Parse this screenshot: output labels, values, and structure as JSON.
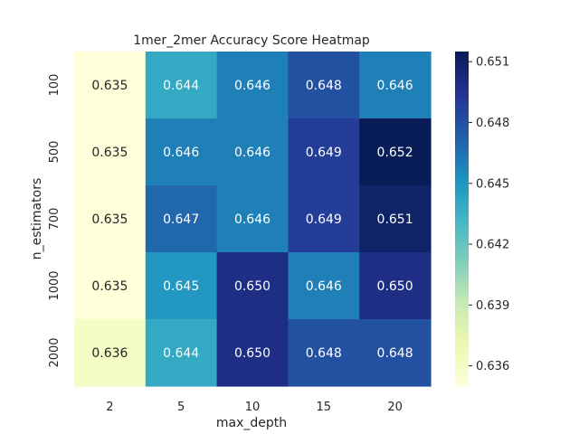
{
  "chart_data": {
    "type": "heatmap",
    "title": "1mer_2mer Accuracy Score Heatmap",
    "xlabel": "max_depth",
    "ylabel": "n_estimators",
    "x_categories": [
      "2",
      "5",
      "10",
      "15",
      "20"
    ],
    "y_categories": [
      "100",
      "500",
      "700",
      "1000",
      "2000"
    ],
    "values": [
      [
        0.635,
        0.644,
        0.646,
        0.648,
        0.646
      ],
      [
        0.635,
        0.646,
        0.646,
        0.649,
        0.652
      ],
      [
        0.635,
        0.647,
        0.646,
        0.649,
        0.651
      ],
      [
        0.635,
        0.645,
        0.65,
        0.646,
        0.65
      ],
      [
        0.636,
        0.644,
        0.65,
        0.648,
        0.648
      ]
    ],
    "value_format": "0.000",
    "colormap": "YlGnBu",
    "colorbar": {
      "min": 0.635,
      "max": 0.6515,
      "ticks": [
        0.636,
        0.639,
        0.642,
        0.645,
        0.648,
        0.651
      ],
      "tick_labels": [
        "0.636",
        "0.639",
        "0.642",
        "0.645",
        "0.648",
        "0.651"
      ]
    },
    "colors": {
      "text_dark": "#262626",
      "text_light": "#ffffff"
    }
  }
}
